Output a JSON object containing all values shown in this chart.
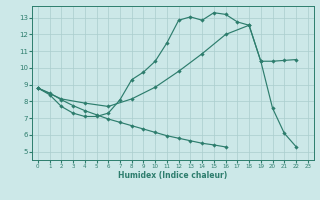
{
  "xlabel": "Humidex (Indice chaleur)",
  "xlim": [
    -0.5,
    23.5
  ],
  "ylim": [
    4.5,
    13.7
  ],
  "xticks": [
    0,
    1,
    2,
    3,
    4,
    5,
    6,
    7,
    8,
    9,
    10,
    11,
    12,
    13,
    14,
    15,
    16,
    17,
    18,
    19,
    20,
    21,
    22,
    23
  ],
  "yticks": [
    5,
    6,
    7,
    8,
    9,
    10,
    11,
    12,
    13
  ],
  "line_color": "#2d7d6d",
  "bg_color": "#cce8e8",
  "grid_color": "#aacece",
  "c1x": [
    0,
    1,
    2,
    3,
    4,
    5,
    6,
    7,
    8,
    9,
    10,
    11,
    12,
    13,
    14,
    15,
    16,
    17,
    18,
    19,
    20,
    21,
    22
  ],
  "c1y": [
    8.8,
    8.4,
    7.7,
    7.3,
    7.1,
    7.1,
    7.3,
    8.1,
    9.3,
    9.75,
    10.4,
    11.5,
    12.85,
    13.05,
    12.85,
    13.3,
    13.2,
    12.75,
    12.55,
    10.4,
    7.6,
    6.1,
    5.3
  ],
  "c2x": [
    0,
    2,
    4,
    6,
    8,
    10,
    12,
    14,
    16,
    18,
    19,
    20,
    21,
    22
  ],
  "c2y": [
    8.8,
    8.15,
    7.9,
    7.7,
    8.15,
    8.85,
    9.8,
    10.85,
    12.0,
    12.55,
    10.4,
    10.4,
    10.45,
    10.5
  ],
  "c3x": [
    0,
    1,
    2,
    3,
    4,
    5,
    6,
    7,
    8,
    9,
    10,
    11,
    12,
    13,
    14,
    15,
    16
  ],
  "c3y": [
    8.8,
    8.5,
    8.1,
    7.75,
    7.45,
    7.2,
    6.95,
    6.75,
    6.55,
    6.35,
    6.15,
    5.95,
    5.8,
    5.65,
    5.5,
    5.4,
    5.28
  ]
}
